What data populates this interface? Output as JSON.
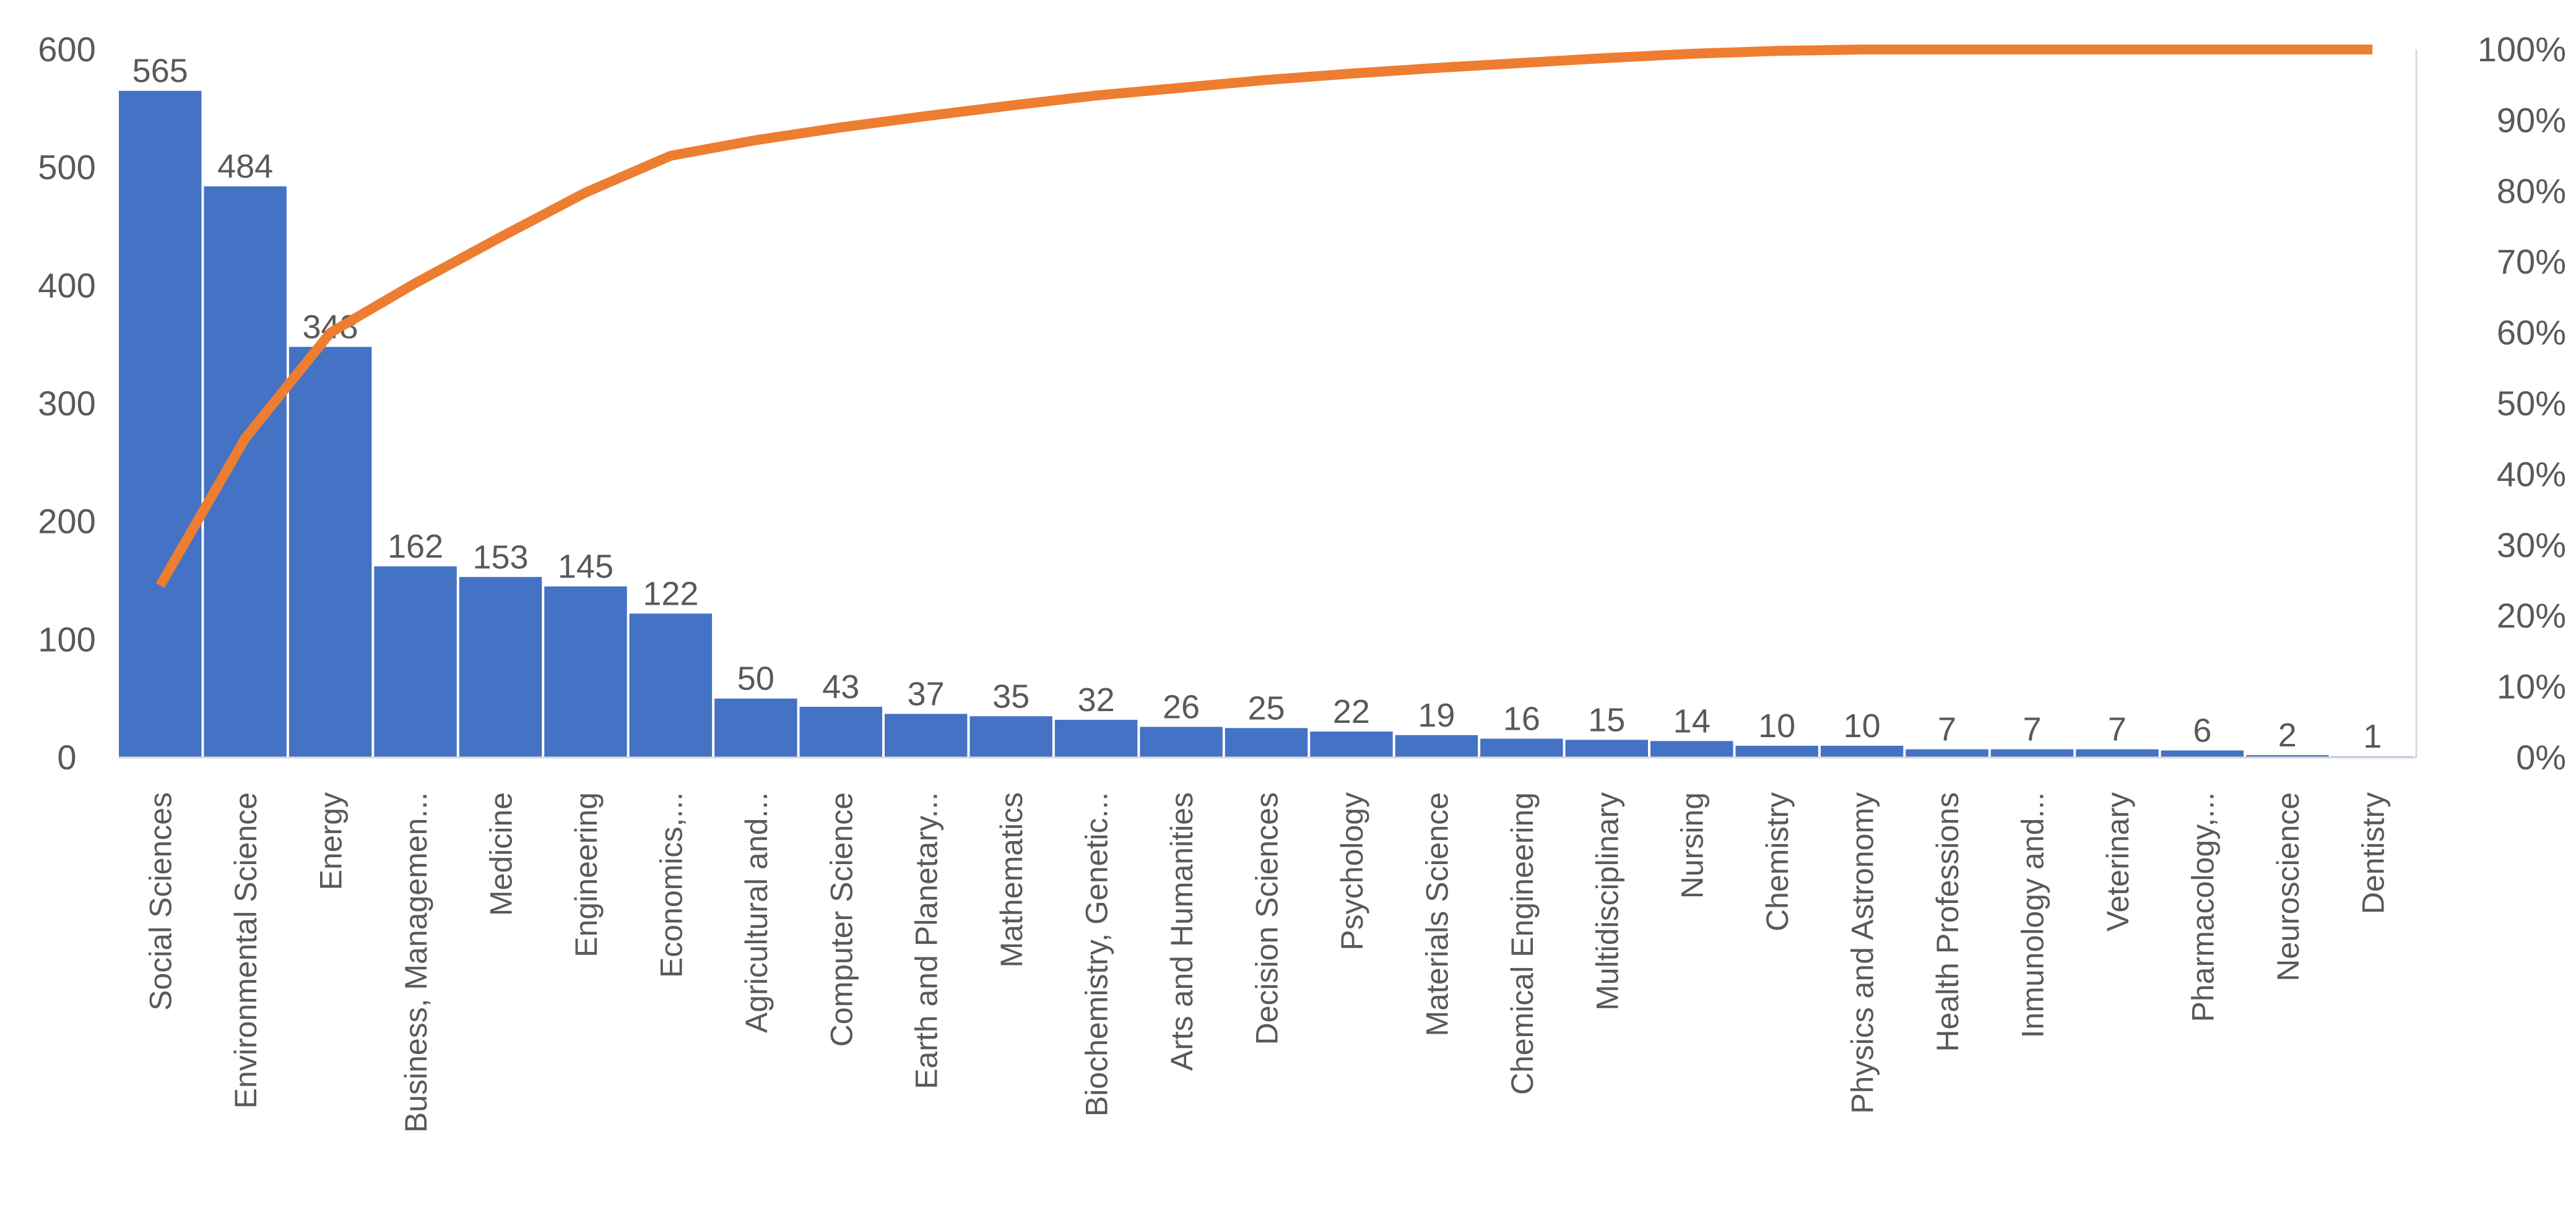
{
  "chart_data": {
    "type": "bar",
    "categories": [
      "Social Sciences",
      "Environmental Science",
      "Energy",
      "Business, Managemen...",
      "Medicine",
      "Engineering",
      "Economics,...",
      "Agricultural and...",
      "Computer Science",
      "Earth and Planetary...",
      "Mathematics",
      "Biochemistry, Genetic...",
      "Arts and Humanities",
      "Decision Sciences",
      "Psychology",
      "Materials Science",
      "Chemical Engineering",
      "Multidisciplinary",
      "Nursing",
      "Chemistry",
      "Physics and Astronomy",
      "Health Professions",
      "Inmunology and...",
      "Veterinary",
      "Pharmacology,...",
      "Neuroscience",
      "Dentistry"
    ],
    "series": [
      {
        "type": "bar",
        "axis": "left",
        "color": "#4472C4",
        "values": [
          565,
          484,
          348,
          162,
          153,
          145,
          122,
          50,
          43,
          37,
          35,
          32,
          26,
          25,
          22,
          19,
          16,
          15,
          14,
          10,
          10,
          7,
          7,
          7,
          6,
          2,
          1
        ]
      },
      {
        "type": "line",
        "axis": "right",
        "color": "#ED7D31",
        "values": [
          24.3,
          45.1,
          60.0,
          67.0,
          73.5,
          79.8,
          85.0,
          87.2,
          89.0,
          90.6,
          92.1,
          93.5,
          94.6,
          95.7,
          96.6,
          97.4,
          98.1,
          98.8,
          99.4,
          99.8,
          100.0,
          100.0,
          100.0,
          100.0,
          100.0,
          100.0,
          100.0
        ]
      }
    ],
    "data_labels": [
      "565",
      "484",
      "348",
      "162",
      "153",
      "145",
      "122",
      "50",
      "43",
      "37",
      "35",
      "32",
      "26",
      "25",
      "22",
      "19",
      "16",
      "15",
      "14",
      "10",
      "10",
      "7",
      "7",
      "7",
      "6",
      "2",
      "1"
    ],
    "y_left": {
      "ylim": [
        0,
        600
      ],
      "ticks": [
        "0",
        "100",
        "200",
        "300",
        "400",
        "500",
        "600"
      ]
    },
    "y_right": {
      "ylim": [
        0,
        100
      ],
      "ticks": [
        "0%",
        "10%",
        "20%",
        "30%",
        "40%",
        "50%",
        "60%",
        "70%",
        "80%",
        "90%",
        "100%"
      ]
    },
    "title": "",
    "xlabel": "",
    "ylabel": "",
    "grid": false,
    "legend": "none"
  }
}
